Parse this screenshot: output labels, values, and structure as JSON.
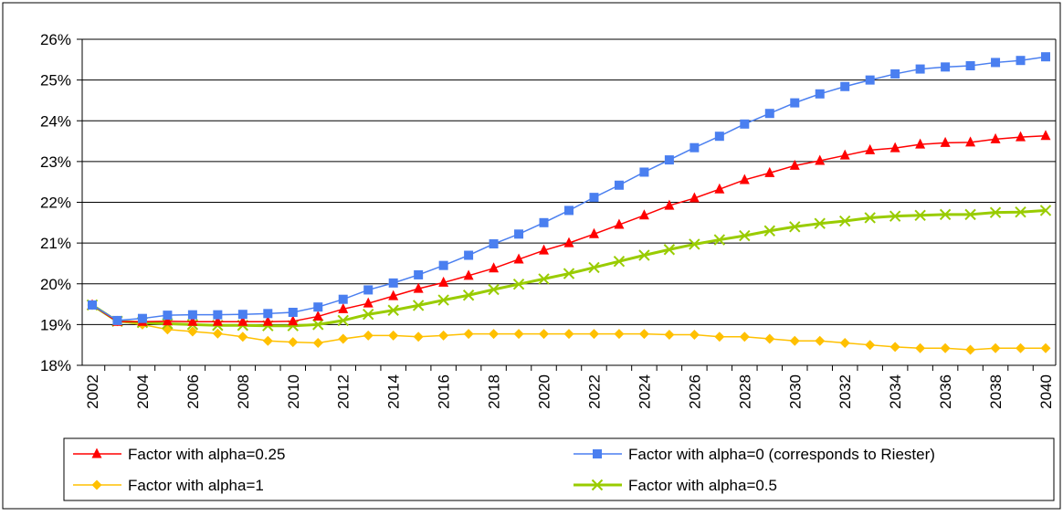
{
  "chart_data": {
    "type": "line",
    "title": "",
    "xlabel": "",
    "ylabel": "",
    "x": [
      2002,
      2003,
      2004,
      2005,
      2006,
      2007,
      2008,
      2009,
      2010,
      2011,
      2012,
      2013,
      2014,
      2015,
      2016,
      2017,
      2018,
      2019,
      2020,
      2021,
      2022,
      2023,
      2024,
      2025,
      2026,
      2027,
      2028,
      2029,
      2030,
      2031,
      2032,
      2033,
      2034,
      2035,
      2036,
      2037,
      2038,
      2039,
      2040
    ],
    "x_tick_labels": [
      "2002",
      "2004",
      "2006",
      "2008",
      "2010",
      "2012",
      "2014",
      "2016",
      "2018",
      "2020",
      "2022",
      "2024",
      "2026",
      "2028",
      "2030",
      "2032",
      "2034",
      "2036",
      "2038",
      "2040"
    ],
    "ylim": [
      18,
      26
    ],
    "y_tick_labels": [
      "18%",
      "19%",
      "20%",
      "21%",
      "22%",
      "23%",
      "24%",
      "25%",
      "26%"
    ],
    "grid": "horizontal",
    "legend_position": "bottom",
    "series": [
      {
        "name": "Factor with alpha=0.25",
        "color": "#ff0000",
        "marker": "triangle",
        "values": [
          19.48,
          19.07,
          19.07,
          19.08,
          19.07,
          19.07,
          19.07,
          19.07,
          19.08,
          19.2,
          19.38,
          19.52,
          19.7,
          19.88,
          20.03,
          20.2,
          20.38,
          20.6,
          20.82,
          21.0,
          21.22,
          21.45,
          21.68,
          21.92,
          22.1,
          22.32,
          22.55,
          22.72,
          22.9,
          23.02,
          23.15,
          23.28,
          23.33,
          23.42,
          23.46,
          23.47,
          23.55,
          23.6,
          23.63
        ]
      },
      {
        "name": "Factor with alpha=0 (corresponds to Riester)",
        "color": "#4a7ff0",
        "marker": "square",
        "values": [
          19.48,
          19.1,
          19.15,
          19.23,
          19.24,
          19.24,
          19.25,
          19.27,
          19.3,
          19.43,
          19.62,
          19.85,
          20.02,
          20.22,
          20.45,
          20.7,
          20.98,
          21.22,
          21.5,
          21.8,
          22.12,
          22.42,
          22.74,
          23.04,
          23.34,
          23.62,
          23.92,
          24.18,
          24.44,
          24.66,
          24.84,
          25.0,
          25.15,
          25.27,
          25.32,
          25.35,
          25.43,
          25.48,
          25.57
        ]
      },
      {
        "name": "Factor with alpha=1",
        "color": "#ffc000",
        "marker": "diamond",
        "values": [
          19.48,
          19.08,
          19.0,
          18.88,
          18.83,
          18.78,
          18.7,
          18.6,
          18.57,
          18.55,
          18.65,
          18.73,
          18.73,
          18.7,
          18.73,
          18.77,
          18.77,
          18.77,
          18.77,
          18.77,
          18.77,
          18.77,
          18.77,
          18.75,
          18.75,
          18.7,
          18.7,
          18.65,
          18.6,
          18.6,
          18.55,
          18.5,
          18.45,
          18.42,
          18.42,
          18.38,
          18.42,
          18.42,
          18.42
        ]
      },
      {
        "name": "Factor with alpha=0.5",
        "color": "#99cc00",
        "marker": "x",
        "values": [
          19.48,
          19.08,
          19.05,
          19.02,
          19.0,
          18.98,
          18.98,
          18.97,
          18.97,
          19.0,
          19.1,
          19.25,
          19.35,
          19.47,
          19.6,
          19.72,
          19.86,
          19.99,
          20.12,
          20.25,
          20.4,
          20.55,
          20.7,
          20.84,
          20.97,
          21.08,
          21.18,
          21.3,
          21.4,
          21.48,
          21.54,
          21.62,
          21.66,
          21.68,
          21.7,
          21.7,
          21.75,
          21.76,
          21.8
        ]
      }
    ]
  }
}
